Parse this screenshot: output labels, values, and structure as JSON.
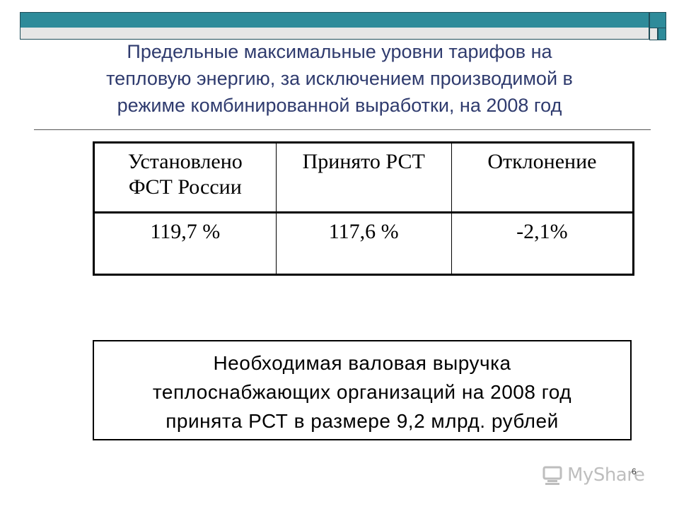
{
  "slide": {
    "title_lines": [
      "Предельные максимальные уровни тарифов на",
      "тепловую энергию, за исключением производимой в",
      "режиме комбинированной выработки, на 2008 год"
    ],
    "number": "6"
  },
  "rates_table": {
    "headers": [
      [
        "Установлено",
        "ФСТ России"
      ],
      [
        "Принято РСТ"
      ],
      [
        "Отклонение"
      ]
    ],
    "row": [
      "119,7 %",
      "117,6 %",
      "-2,1%"
    ]
  },
  "revenue_note": {
    "lines": [
      "Необходимая валовая выручка",
      "теплоснабжающих организаций на 2008 год",
      "принята РСТ в размере 9,2 млрд. рублей"
    ]
  },
  "watermark": {
    "text": "MyShare",
    "icon": "myshared-logo-icon"
  },
  "colors": {
    "accent_bar": "#2e8b9a",
    "title": "#2f3b6e"
  }
}
